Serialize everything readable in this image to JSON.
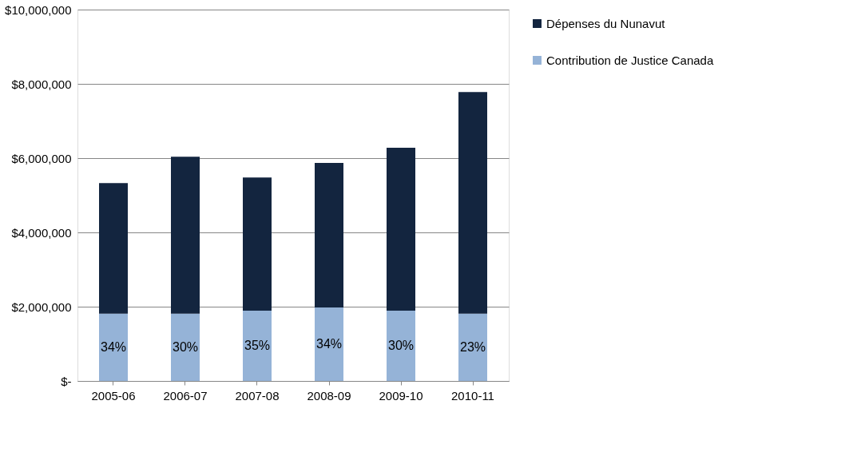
{
  "chart_data": {
    "type": "bar",
    "stacked": true,
    "categories": [
      "2005-06",
      "2006-07",
      "2007-08",
      "2008-09",
      "2009-10",
      "2010-11"
    ],
    "series": [
      {
        "name": "Contribution de Justice Canada",
        "color": "#95b3d7",
        "values": [
          1810000,
          1810000,
          1890000,
          1980000,
          1890000,
          1810000
        ]
      },
      {
        "name": "Dépenses du Nunavut",
        "color": "#13253f",
        "values": [
          3520000,
          4230000,
          3590000,
          3890000,
          4390000,
          5970000
        ]
      }
    ],
    "ylim": [
      0,
      10000000
    ],
    "yticks": [
      {
        "value": 0,
        "label": "$-"
      },
      {
        "value": 2000000,
        "label": "$2,000,000"
      },
      {
        "value": 4000000,
        "label": "$4,000,000"
      },
      {
        "value": 6000000,
        "label": "$6,000,000"
      },
      {
        "value": 8000000,
        "label": "$8,000,000"
      },
      {
        "value": 10000000,
        "label": "$10,000,000"
      }
    ],
    "annotations": [
      "34%",
      "30%",
      "35%",
      "34%",
      "30%",
      "23%"
    ],
    "grid": "y",
    "legend": "right"
  }
}
